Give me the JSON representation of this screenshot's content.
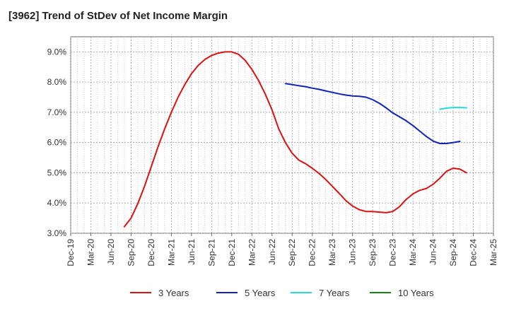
{
  "chart_data": {
    "type": "line",
    "title": "[3962]  Trend of StDev of Net Income Margin",
    "xlabel": "",
    "ylabel": "",
    "ylim": [
      3.0,
      9.5
    ],
    "y_ticks": [
      "3.0%",
      "4.0%",
      "5.0%",
      "6.0%",
      "7.0%",
      "8.0%",
      "9.0%"
    ],
    "y_tick_values": [
      3,
      4,
      5,
      6,
      7,
      8,
      9
    ],
    "x_ticks": [
      "Dec-19",
      "Mar-20",
      "Jun-20",
      "Sep-20",
      "Dec-20",
      "Mar-21",
      "Jun-21",
      "Sep-21",
      "Dec-21",
      "Mar-22",
      "Jun-22",
      "Sep-22",
      "Dec-22",
      "Mar-23",
      "Jun-23",
      "Sep-23",
      "Dec-23",
      "Mar-24",
      "Jun-24",
      "Sep-24",
      "Dec-24",
      "Mar-25"
    ],
    "grid": true,
    "legend_position": "bottom",
    "series": [
      {
        "name": "3 Years",
        "color": "#dd1111",
        "points": [
          [
            "2020-08",
            3.22
          ],
          [
            "2020-09",
            3.5
          ],
          [
            "2020-10",
            3.98
          ],
          [
            "2020-11",
            4.55
          ],
          [
            "2020-12",
            5.2
          ],
          [
            "2021-01",
            5.85
          ],
          [
            "2021-02",
            6.45
          ],
          [
            "2021-03",
            7.0
          ],
          [
            "2021-04",
            7.5
          ],
          [
            "2021-05",
            7.92
          ],
          [
            "2021-06",
            8.28
          ],
          [
            "2021-07",
            8.55
          ],
          [
            "2021-08",
            8.75
          ],
          [
            "2021-09",
            8.88
          ],
          [
            "2021-10",
            8.96
          ],
          [
            "2021-11",
            9.0
          ],
          [
            "2021-12",
            9.0
          ],
          [
            "2022-01",
            8.92
          ],
          [
            "2022-02",
            8.72
          ],
          [
            "2022-03",
            8.42
          ],
          [
            "2022-04",
            8.05
          ],
          [
            "2022-05",
            7.6
          ],
          [
            "2022-06",
            7.08
          ],
          [
            "2022-07",
            6.45
          ],
          [
            "2022-08",
            6.0
          ],
          [
            "2022-09",
            5.65
          ],
          [
            "2022-10",
            5.42
          ],
          [
            "2022-11",
            5.3
          ],
          [
            "2022-12",
            5.15
          ],
          [
            "2023-01",
            4.98
          ],
          [
            "2023-02",
            4.78
          ],
          [
            "2023-03",
            4.55
          ],
          [
            "2023-04",
            4.32
          ],
          [
            "2023-05",
            4.08
          ],
          [
            "2023-06",
            3.9
          ],
          [
            "2023-07",
            3.78
          ],
          [
            "2023-08",
            3.72
          ],
          [
            "2023-09",
            3.72
          ],
          [
            "2023-10",
            3.7
          ],
          [
            "2023-11",
            3.68
          ],
          [
            "2023-12",
            3.72
          ],
          [
            "2024-01",
            3.88
          ],
          [
            "2024-02",
            4.12
          ],
          [
            "2024-03",
            4.3
          ],
          [
            "2024-04",
            4.42
          ],
          [
            "2024-05",
            4.48
          ],
          [
            "2024-06",
            4.62
          ],
          [
            "2024-07",
            4.82
          ],
          [
            "2024-08",
            5.05
          ],
          [
            "2024-09",
            5.15
          ],
          [
            "2024-10",
            5.12
          ],
          [
            "2024-11",
            5.0
          ]
        ]
      },
      {
        "name": "5 Years",
        "color": "#1122bb",
        "points": [
          [
            "2022-08",
            7.95
          ],
          [
            "2022-09",
            7.92
          ],
          [
            "2022-10",
            7.88
          ],
          [
            "2022-11",
            7.85
          ],
          [
            "2022-12",
            7.8
          ],
          [
            "2023-01",
            7.76
          ],
          [
            "2023-02",
            7.71
          ],
          [
            "2023-03",
            7.66
          ],
          [
            "2023-04",
            7.61
          ],
          [
            "2023-05",
            7.57
          ],
          [
            "2023-06",
            7.54
          ],
          [
            "2023-07",
            7.53
          ],
          [
            "2023-08",
            7.5
          ],
          [
            "2023-09",
            7.42
          ],
          [
            "2023-10",
            7.3
          ],
          [
            "2023-11",
            7.15
          ],
          [
            "2023-12",
            6.98
          ],
          [
            "2024-01",
            6.85
          ],
          [
            "2024-02",
            6.72
          ],
          [
            "2024-03",
            6.56
          ],
          [
            "2024-04",
            6.38
          ],
          [
            "2024-05",
            6.2
          ],
          [
            "2024-06",
            6.05
          ],
          [
            "2024-07",
            5.97
          ],
          [
            "2024-08",
            5.97
          ],
          [
            "2024-09",
            6.0
          ],
          [
            "2024-10",
            6.04
          ]
        ]
      },
      {
        "name": "7 Years",
        "color": "#22dddd",
        "points": [
          [
            "2024-07",
            7.1
          ],
          [
            "2024-08",
            7.14
          ],
          [
            "2024-09",
            7.16
          ],
          [
            "2024-10",
            7.16
          ],
          [
            "2024-11",
            7.15
          ]
        ]
      },
      {
        "name": "10 Years",
        "color": "#118811",
        "points": []
      }
    ]
  }
}
